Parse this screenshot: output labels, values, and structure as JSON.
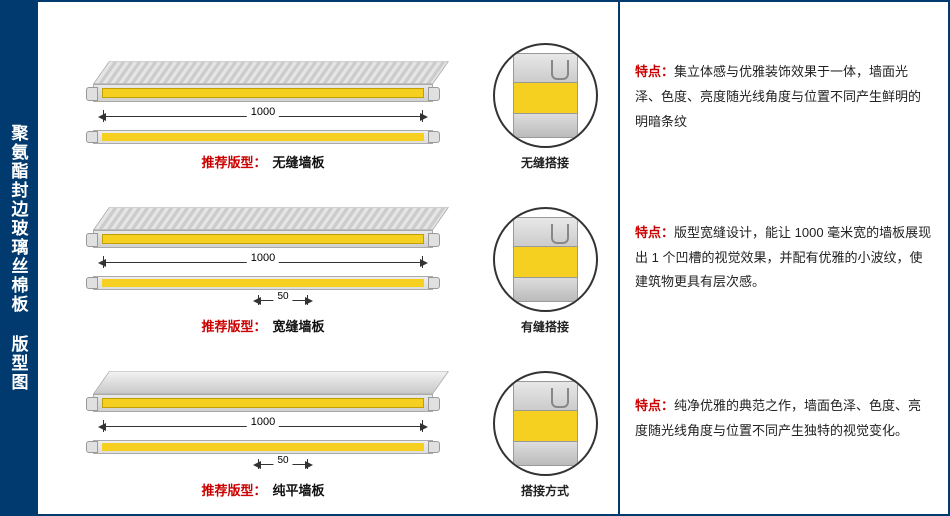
{
  "sidebar": {
    "title": "聚氨酯封边玻璃丝棉板 版型图"
  },
  "colors": {
    "brand": "#003a6e",
    "accent": "#c00",
    "core": "#f5d020",
    "metal_light": "#e8e8e8",
    "metal_dark": "#c8c8c8"
  },
  "panels": [
    {
      "surface": "ribbed",
      "width_mm": "1000",
      "has_small_dim": false,
      "rec_key": "推荐版型：",
      "rec_val": "无缝墙板",
      "circle_label": "无缝搭接",
      "desc_key": "特点：",
      "desc_text": "集立体感与优雅装饰效果于一体，墙面光泽、色度、亮度随光线角度与位置不同产生鲜明的明暗条纹"
    },
    {
      "surface": "ribbed",
      "width_mm": "1000",
      "has_small_dim": true,
      "small_dim": "50",
      "rec_key": "推荐版型：",
      "rec_val": "宽缝墙板",
      "circle_label": "有缝搭接",
      "desc_key": "特点：",
      "desc_text": "版型宽缝设计，能让 1000 毫米宽的墙板展现出 1 个凹槽的视觉效果，并配有优雅的小波纹，使建筑物更具有层次感。"
    },
    {
      "surface": "flat",
      "width_mm": "1000",
      "has_small_dim": true,
      "small_dim": "50",
      "rec_key": "推荐版型：",
      "rec_val": "纯平墙板",
      "circle_label": "搭接方式",
      "desc_key": "特点：",
      "desc_text": "纯净优雅的典范之作，墙面色泽、色度、亮度随光线角度与位置不同产生独特的视觉变化。"
    }
  ]
}
